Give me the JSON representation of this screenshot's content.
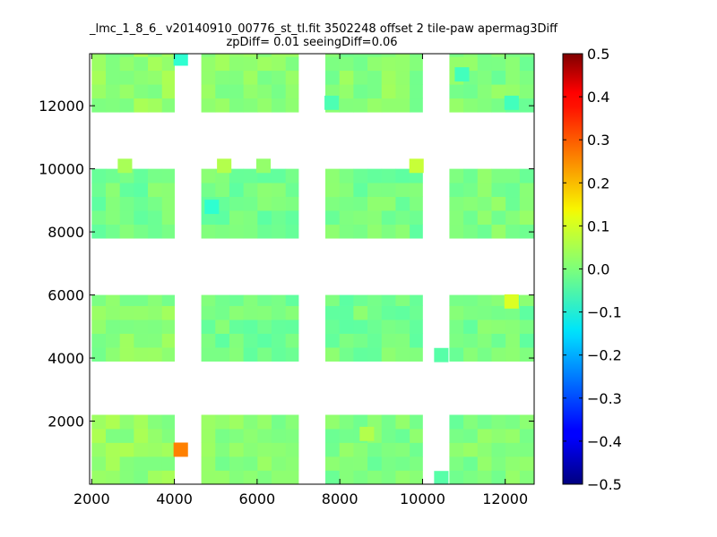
{
  "chart_data": {
    "type": "heatmap",
    "title": "_lmc_1_8_6_ v20140910_00776_st_tl.fit 3502248 offset 2 tile-paw apermag3Diff",
    "subtitle": "zpDiff= 0.01 seeingDiff=0.06",
    "xlim": [
      1950,
      12700
    ],
    "ylim": [
      0,
      13650
    ],
    "x_ticks": [
      2000,
      4000,
      6000,
      8000,
      10000,
      12000
    ],
    "y_ticks": [
      2000,
      4000,
      6000,
      8000,
      10000,
      12000
    ],
    "colorbar": {
      "min": -0.5,
      "max": 0.5,
      "colormap": "jet",
      "ticks": [
        "0.5",
        "0.4",
        "0.3",
        "0.2",
        "0.1",
        "0.0",
        "−0.1",
        "−0.2",
        "−0.3",
        "−0.4",
        "−0.5"
      ],
      "tick_values": [
        0.5,
        0.4,
        0.3,
        0.2,
        0.1,
        0.0,
        -0.1,
        -0.2,
        -0.3,
        -0.4,
        -0.5
      ]
    },
    "cell_size": [
      340,
      440
    ],
    "blocks": [
      {
        "x": [
          2000,
          4000
        ],
        "y": [
          0,
          2200
        ],
        "mean": 0.02
      },
      {
        "x": [
          4650,
          7000
        ],
        "y": [
          0,
          2200
        ],
        "mean": 0.01
      },
      {
        "x": [
          7650,
          10000
        ],
        "y": [
          0,
          2200
        ],
        "mean": 0.0
      },
      {
        "x": [
          10650,
          12700
        ],
        "y": [
          0,
          2200
        ],
        "mean": 0.0
      },
      {
        "x": [
          2000,
          4000
        ],
        "y": [
          3900,
          6000
        ],
        "mean": 0.01
      },
      {
        "x": [
          4650,
          7000
        ],
        "y": [
          3900,
          6000
        ],
        "mean": -0.01
      },
      {
        "x": [
          7650,
          10000
        ],
        "y": [
          3900,
          6000
        ],
        "mean": -0.01
      },
      {
        "x": [
          10650,
          12700
        ],
        "y": [
          3900,
          6000
        ],
        "mean": -0.01
      },
      {
        "x": [
          2000,
          4000
        ],
        "y": [
          7800,
          10000
        ],
        "mean": -0.01
      },
      {
        "x": [
          4650,
          7000
        ],
        "y": [
          7800,
          10000
        ],
        "mean": -0.01
      },
      {
        "x": [
          7650,
          10000
        ],
        "y": [
          7800,
          10000
        ],
        "mean": -0.01
      },
      {
        "x": [
          10650,
          12700
        ],
        "y": [
          7800,
          10000
        ],
        "mean": 0.0
      },
      {
        "x": [
          2000,
          4000
        ],
        "y": [
          11800,
          13650
        ],
        "mean": 0.02
      },
      {
        "x": [
          4650,
          7000
        ],
        "y": [
          11800,
          13650
        ],
        "mean": 0.01
      },
      {
        "x": [
          7650,
          10000
        ],
        "y": [
          11800,
          13650
        ],
        "mean": 0.01
      },
      {
        "x": [
          10650,
          12700
        ],
        "y": [
          11800,
          13650
        ],
        "mean": 0.0
      }
    ],
    "outliers": [
      {
        "x": 4150,
        "y": 1100,
        "value": 0.25
      },
      {
        "x": 2800,
        "y": 10100,
        "value": 0.04
      },
      {
        "x": 5200,
        "y": 10100,
        "value": 0.05
      },
      {
        "x": 6150,
        "y": 10100,
        "value": 0.02
      },
      {
        "x": 9850,
        "y": 10100,
        "value": 0.07
      },
      {
        "x": 4150,
        "y": 13500,
        "value": -0.08
      },
      {
        "x": 10950,
        "y": 13000,
        "value": -0.06
      },
      {
        "x": 7800,
        "y": 12100,
        "value": -0.05
      },
      {
        "x": 4900,
        "y": 8800,
        "value": -0.08
      },
      {
        "x": 12150,
        "y": 5800,
        "value": 0.09
      },
      {
        "x": 12150,
        "y": 12100,
        "value": -0.06
      },
      {
        "x": 8650,
        "y": 1600,
        "value": 0.05
      },
      {
        "x": 10450,
        "y": 200,
        "value": -0.04
      },
      {
        "x": 10450,
        "y": 4100,
        "value": -0.04
      }
    ]
  }
}
